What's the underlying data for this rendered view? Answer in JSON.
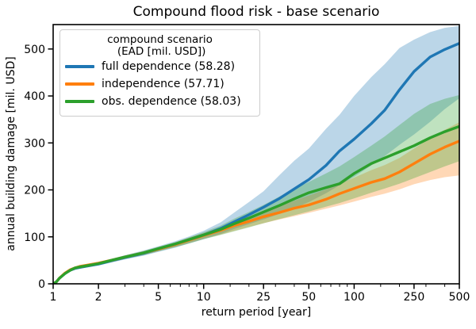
{
  "chart": {
    "title": "Compound flood risk - base scenario",
    "xlabel": "return period [year]",
    "ylabel": "annual building damage [mil. USD]",
    "legend": {
      "title_line1": "compound scenario",
      "title_line2": " (EAD [mil. USD])",
      "items": [
        {
          "label": "full dependence (58.28)",
          "color": "#1f77b4"
        },
        {
          "label": "independence (57.71)",
          "color": "#ff7f0e"
        },
        {
          "label": "obs. dependence (58.03)",
          "color": "#2ca02c"
        }
      ]
    }
  },
  "chart_data": {
    "type": "line",
    "title": "Compound flood risk - base scenario",
    "xlabel": "return period [year]",
    "ylabel": "annual building damage [mil. USD]",
    "x_scale": "log",
    "xlim": [
      1,
      500
    ],
    "ylim": [
      0,
      552
    ],
    "grid": false,
    "legend_position": "upper left",
    "band_opacity": 0.3,
    "x_ticks": [
      1,
      2,
      5,
      10,
      25,
      50,
      100,
      250,
      500
    ],
    "x_minor_ticks": [
      3,
      4,
      6,
      7,
      8,
      9,
      15,
      20,
      30,
      40,
      60,
      70,
      80,
      90,
      150,
      200,
      300,
      400
    ],
    "y_ticks": [
      0,
      100,
      200,
      300,
      400,
      500
    ],
    "x": [
      1,
      1.05,
      1.1,
      1.2,
      1.3,
      1.4,
      1.5,
      1.7,
      2,
      2.5,
      3,
      4,
      5,
      6.5,
      8,
      10,
      13,
      16,
      20,
      25,
      32,
      40,
      50,
      65,
      80,
      100,
      130,
      160,
      200,
      250,
      320,
      400,
      500
    ],
    "series": [
      {
        "name": "full dependence",
        "ead_mil_usd": 58.28,
        "color": "#1f77b4",
        "values": [
          0,
          4,
          12,
          22,
          29,
          33,
          35,
          38,
          42,
          50,
          56,
          65,
          74,
          84,
          94,
          104,
          118,
          132,
          147,
          163,
          182,
          202,
          222,
          252,
          283,
          308,
          341,
          370,
          413,
          452,
          483,
          499,
          512
        ],
        "band_upper": [
          0,
          5,
          14,
          25,
          32,
          36,
          38,
          41,
          46,
          54,
          61,
          71,
          80,
          91,
          101,
          113,
          131,
          152,
          174,
          197,
          232,
          262,
          288,
          330,
          360,
          400,
          440,
          468,
          502,
          520,
          536,
          545,
          549
        ],
        "band_lower": [
          0,
          3,
          10,
          20,
          26,
          30,
          32,
          35,
          39,
          46,
          52,
          60,
          68,
          77,
          86,
          95,
          106,
          117,
          127,
          137,
          149,
          161,
          174,
          193,
          210,
          228,
          252,
          272,
          296,
          318,
          345,
          372,
          395
        ]
      },
      {
        "name": "independence",
        "ead_mil_usd": 57.71,
        "color": "#ff7f0e",
        "values": [
          0,
          4,
          12,
          23,
          30,
          34,
          37,
          40,
          44,
          51,
          57,
          66,
          74,
          84,
          93,
          103,
          114,
          124,
          133,
          143,
          152,
          161,
          168,
          180,
          192,
          203,
          216,
          224,
          238,
          256,
          276,
          291,
          304
        ],
        "band_upper": [
          0,
          5,
          13,
          24,
          31,
          36,
          39,
          42,
          46,
          53,
          60,
          69,
          78,
          88,
          98,
          108,
          121,
          132,
          143,
          154,
          166,
          177,
          188,
          201,
          213,
          226,
          242,
          253,
          268,
          288,
          310,
          328,
          344
        ],
        "band_lower": [
          0,
          3,
          10,
          21,
          27,
          31,
          34,
          37,
          41,
          48,
          54,
          62,
          70,
          79,
          87,
          96,
          105,
          113,
          121,
          129,
          137,
          144,
          151,
          160,
          167,
          175,
          185,
          192,
          201,
          212,
          221,
          227,
          231
        ]
      },
      {
        "name": "obs. dependence",
        "ead_mil_usd": 58.03,
        "color": "#2ca02c",
        "values": [
          0,
          4,
          12,
          22,
          29,
          34,
          36,
          39,
          43,
          51,
          57,
          66,
          75,
          85,
          94,
          104,
          116,
          128,
          140,
          153,
          167,
          181,
          194,
          205,
          213,
          235,
          256,
          268,
          281,
          294,
          311,
          324,
          335
        ],
        "band_upper": [
          0,
          5,
          13,
          24,
          31,
          36,
          38,
          41,
          45,
          53,
          60,
          70,
          79,
          89,
          99,
          110,
          124,
          139,
          153,
          168,
          186,
          202,
          217,
          235,
          250,
          270,
          294,
          314,
          338,
          362,
          383,
          394,
          402
        ],
        "band_lower": [
          0,
          3,
          10,
          20,
          26,
          31,
          33,
          36,
          40,
          47,
          53,
          61,
          69,
          78,
          86,
          95,
          104,
          112,
          120,
          129,
          138,
          146,
          154,
          164,
          172,
          182,
          194,
          203,
          213,
          225,
          238,
          250,
          261
        ]
      }
    ]
  }
}
